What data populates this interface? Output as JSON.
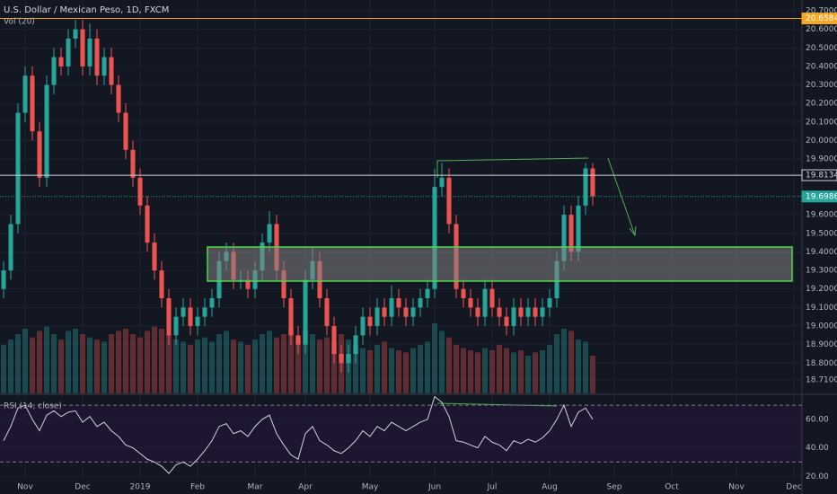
{
  "chart_data": [
    {
      "type": "candlestick",
      "title": "U.S. Dollar / Mexican Peso, 1D, FXCM",
      "subtitle": "Vol (20)",
      "up_color": "#26a69a",
      "down_color": "#ef5350",
      "categories": [
        null,
        null,
        null,
        "Nov",
        null,
        null,
        null,
        null,
        null,
        null,
        null,
        "Dec",
        null,
        null,
        null,
        null,
        null,
        null,
        null,
        "2019",
        null,
        null,
        null,
        null,
        null,
        null,
        null,
        "Feb",
        null,
        null,
        null,
        null,
        null,
        null,
        null,
        "Mar",
        null,
        null,
        null,
        null,
        null,
        null,
        "Apr",
        null,
        null,
        null,
        null,
        null,
        null,
        null,
        null,
        "May",
        null,
        null,
        null,
        null,
        null,
        null,
        null,
        null,
        "Jun",
        null,
        null,
        null,
        null,
        null,
        null,
        null,
        "Jul",
        null,
        null,
        null,
        null,
        null,
        null,
        null,
        "Aug",
        null,
        null,
        null,
        null,
        null,
        null,
        null,
        null,
        "Sep",
        null,
        null,
        null,
        null,
        null,
        null,
        null,
        "Oct",
        null,
        null,
        null,
        null,
        null,
        null,
        null,
        null,
        "Nov",
        null,
        null,
        null,
        null,
        null,
        null,
        null,
        "Dec"
      ],
      "open": [
        19.2,
        19.3,
        19.55,
        20.15,
        20.35,
        20.05,
        19.8,
        20.3,
        20.45,
        20.4,
        20.55,
        20.6,
        20.4,
        20.55,
        20.35,
        20.45,
        20.3,
        20.15,
        19.95,
        19.8,
        19.65,
        19.45,
        19.3,
        19.15,
        18.95,
        19.05,
        19.1,
        19.0,
        19.05,
        19.1,
        19.15,
        19.35,
        19.4,
        19.25,
        19.25,
        19.2,
        19.3,
        19.45,
        19.55,
        19.3,
        19.15,
        18.95,
        18.9,
        19.25,
        19.35,
        19.15,
        19.0,
        18.85,
        18.8,
        18.85,
        18.95,
        19.05,
        19.0,
        19.1,
        19.05,
        19.15,
        19.1,
        19.05,
        19.1,
        19.15,
        19.2,
        19.75,
        19.8,
        19.55,
        19.2,
        19.15,
        19.1,
        19.05,
        19.2,
        19.1,
        19.05,
        19.0,
        19.1,
        19.05,
        19.1,
        19.05,
        19.1,
        19.15,
        19.35,
        19.6,
        19.4,
        19.65,
        19.85,
        null,
        null,
        null,
        null,
        null,
        null,
        null,
        null,
        null,
        null,
        null,
        null,
        null,
        null,
        null,
        null,
        null,
        null,
        null,
        null,
        null,
        null,
        null,
        null,
        null,
        null,
        null,
        null
      ],
      "high": [
        19.35,
        19.6,
        20.2,
        20.4,
        20.4,
        20.1,
        20.35,
        20.5,
        20.5,
        20.6,
        20.65,
        20.65,
        20.63,
        20.6,
        20.5,
        20.5,
        20.35,
        20.2,
        20.0,
        19.85,
        19.7,
        19.5,
        19.35,
        19.2,
        19.1,
        19.15,
        19.15,
        19.1,
        19.15,
        19.2,
        19.4,
        19.45,
        19.45,
        19.3,
        19.3,
        19.35,
        19.5,
        19.62,
        19.6,
        19.35,
        19.2,
        19.0,
        19.3,
        19.42,
        19.4,
        19.2,
        19.05,
        18.9,
        18.9,
        19.0,
        19.1,
        19.1,
        19.15,
        19.15,
        19.22,
        19.2,
        19.15,
        19.15,
        19.2,
        19.25,
        19.85,
        19.88,
        19.85,
        19.6,
        19.25,
        19.2,
        19.15,
        19.25,
        19.25,
        19.15,
        19.1,
        19.15,
        19.15,
        19.15,
        19.15,
        19.15,
        19.2,
        19.4,
        19.65,
        19.65,
        19.7,
        19.88,
        19.88,
        null,
        null,
        null,
        null,
        null,
        null,
        null,
        null,
        null,
        null,
        null,
        null,
        null,
        null,
        null,
        null,
        null,
        null,
        null,
        null,
        null,
        null,
        null,
        null,
        null,
        null,
        null,
        null
      ],
      "low": [
        19.15,
        19.25,
        19.5,
        20.1,
        20.0,
        19.75,
        19.75,
        20.25,
        20.35,
        20.35,
        20.5,
        20.35,
        20.35,
        20.3,
        20.3,
        20.25,
        20.1,
        19.9,
        19.75,
        19.6,
        19.4,
        19.25,
        19.1,
        18.9,
        18.9,
        19.0,
        18.95,
        18.95,
        19.0,
        19.05,
        19.1,
        19.3,
        19.2,
        19.2,
        19.15,
        19.15,
        19.25,
        19.4,
        19.25,
        19.1,
        18.9,
        18.85,
        18.85,
        19.2,
        19.1,
        18.95,
        18.8,
        18.75,
        18.75,
        18.8,
        18.9,
        18.95,
        18.95,
        19.0,
        19.0,
        19.05,
        19.0,
        19.0,
        19.05,
        19.1,
        19.15,
        19.7,
        19.5,
        19.15,
        19.1,
        19.05,
        19.0,
        19.0,
        19.05,
        19.0,
        18.95,
        18.95,
        19.0,
        19.0,
        19.0,
        19.0,
        19.05,
        19.1,
        19.3,
        19.35,
        19.35,
        19.6,
        19.65,
        null,
        null,
        null,
        null,
        null,
        null,
        null,
        null,
        null,
        null,
        null,
        null,
        null,
        null,
        null,
        null,
        null,
        null,
        null,
        null,
        null,
        null,
        null,
        null,
        null,
        null,
        null,
        null
      ],
      "close": [
        19.3,
        19.55,
        20.15,
        20.35,
        20.05,
        19.8,
        20.3,
        20.45,
        20.4,
        20.55,
        20.6,
        20.4,
        20.55,
        20.35,
        20.45,
        20.3,
        20.15,
        19.95,
        19.8,
        19.65,
        19.45,
        19.3,
        19.15,
        18.95,
        19.05,
        19.1,
        19.0,
        19.05,
        19.1,
        19.15,
        19.35,
        19.4,
        19.25,
        19.25,
        19.2,
        19.3,
        19.45,
        19.55,
        19.3,
        19.15,
        18.95,
        18.9,
        19.25,
        19.35,
        19.15,
        19.0,
        18.85,
        18.8,
        18.85,
        18.95,
        19.05,
        19.0,
        19.1,
        19.05,
        19.15,
        19.1,
        19.05,
        19.1,
        19.15,
        19.2,
        19.75,
        19.8,
        19.55,
        19.2,
        19.15,
        19.1,
        19.05,
        19.2,
        19.1,
        19.05,
        19.0,
        19.1,
        19.05,
        19.1,
        19.05,
        19.1,
        19.15,
        19.35,
        19.6,
        19.4,
        19.65,
        19.85,
        19.7,
        null,
        null,
        null,
        null,
        null,
        null,
        null,
        null,
        null,
        null,
        null,
        null,
        null,
        null,
        null,
        null,
        null,
        null,
        null,
        null,
        null,
        null,
        null,
        null,
        null,
        null,
        null,
        null
      ],
      "volume": [
        45,
        50,
        55,
        60,
        52,
        58,
        62,
        55,
        50,
        58,
        60,
        55,
        52,
        50,
        48,
        55,
        58,
        60,
        55,
        52,
        58,
        62,
        60,
        55,
        50,
        48,
        45,
        50,
        52,
        48,
        55,
        58,
        50,
        48,
        45,
        50,
        55,
        58,
        52,
        55,
        60,
        52,
        58,
        55,
        50,
        52,
        48,
        55,
        50,
        45,
        42,
        40,
        45,
        48,
        42,
        40,
        38,
        42,
        45,
        48,
        65,
        58,
        52,
        45,
        42,
        40,
        38,
        42,
        40,
        45,
        42,
        38,
        40,
        35,
        38,
        40,
        45,
        55,
        60,
        58,
        50,
        48,
        35,
        null,
        null,
        null,
        null,
        null,
        null,
        null,
        null,
        null,
        null,
        null,
        null,
        null,
        null,
        null,
        null,
        null,
        null,
        null,
        null,
        null,
        null,
        null,
        null,
        null,
        null,
        null,
        null
      ],
      "ylim": [
        18.637,
        20.758
      ],
      "yticks": [
        {
          "value": 20.7,
          "label": "20.70000"
        },
        {
          "value": 20.6,
          "label": "20.60000"
        },
        {
          "value": 20.5,
          "label": "20.50000"
        },
        {
          "value": 20.4,
          "label": "20.40000"
        },
        {
          "value": 20.3,
          "label": "20.30000"
        },
        {
          "value": 20.2,
          "label": "20.20000"
        },
        {
          "value": 20.1,
          "label": "20.10000"
        },
        {
          "value": 20.0,
          "label": "20.00000"
        },
        {
          "value": 19.9,
          "label": "19.90000"
        },
        {
          "value": 19.6,
          "label": "19.60000"
        },
        {
          "value": 19.5,
          "label": "19.50000"
        },
        {
          "value": 19.4,
          "label": "19.40000"
        },
        {
          "value": 19.3,
          "label": "19.30000"
        },
        {
          "value": 19.2,
          "label": "19.20000"
        },
        {
          "value": 19.1,
          "label": "19.10000"
        },
        {
          "value": 19.0,
          "label": "19.00000"
        },
        {
          "value": 18.9,
          "label": "18.90000"
        },
        {
          "value": 18.8,
          "label": "18.80000"
        },
        {
          "value": 18.71,
          "label": "18.71000"
        }
      ],
      "grid": true,
      "price_lines": [
        {
          "value": 20.65844,
          "color": "#f5a623",
          "style": "solid"
        },
        {
          "value": 19.8134,
          "label": "19.81340",
          "color": "#d1d4dc",
          "style": "solid"
        },
        {
          "value": 19.6986,
          "label": "19.69860",
          "color": "#26a69a",
          "style": "dotted"
        }
      ]
    },
    {
      "type": "line",
      "title": "RSI (14, close)",
      "color": "#d1d4dc",
      "values": [
        45,
        55,
        68,
        70,
        60,
        52,
        63,
        66,
        62,
        65,
        66,
        58,
        62,
        55,
        58,
        52,
        48,
        42,
        40,
        36,
        32,
        30,
        27,
        22,
        28,
        30,
        27,
        32,
        38,
        45,
        55,
        57,
        50,
        52,
        48,
        55,
        60,
        63,
        50,
        42,
        35,
        32,
        50,
        55,
        45,
        42,
        38,
        36,
        40,
        45,
        52,
        48,
        55,
        52,
        58,
        55,
        52,
        55,
        58,
        60,
        76,
        72,
        62,
        45,
        44,
        42,
        40,
        48,
        44,
        42,
        38,
        45,
        43,
        46,
        44,
        47,
        52,
        60,
        70,
        55,
        65,
        68,
        60,
        null,
        null,
        null,
        null,
        null,
        null,
        null,
        null,
        null,
        null,
        null,
        null,
        null,
        null,
        null,
        null,
        null,
        null,
        null,
        null,
        null,
        null,
        null,
        null,
        null,
        null,
        null,
        null
      ],
      "ylim": [
        17,
        77
      ],
      "yticks": [
        {
          "value": 60,
          "label": "60.00"
        },
        {
          "value": 40,
          "label": "40.00"
        },
        {
          "value": 20,
          "label": "20.00"
        }
      ],
      "bands": [
        30,
        70
      ]
    }
  ]
}
